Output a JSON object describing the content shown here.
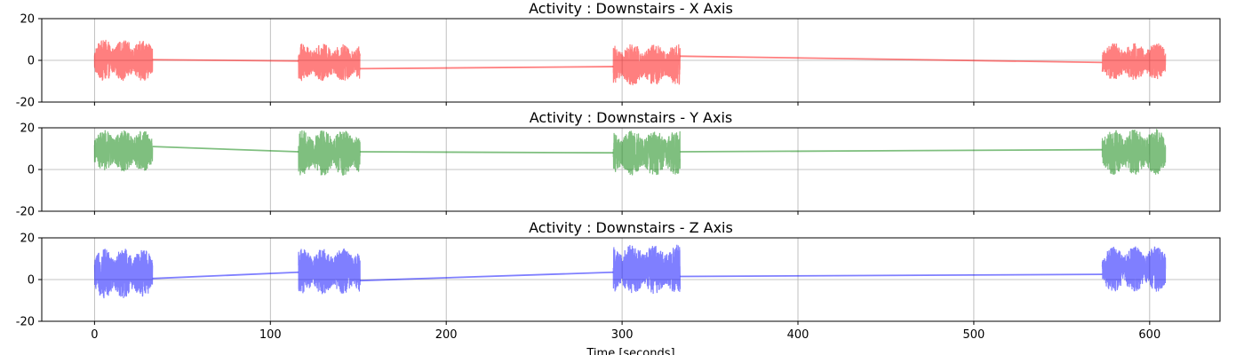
{
  "chart_data": [
    {
      "type": "line",
      "title": "Activity : Downstairs - X Axis",
      "color": "#ff0000",
      "alpha": 0.5,
      "ylim": [
        -20,
        20
      ],
      "yticks": [
        -20,
        0,
        20
      ],
      "xlim": [
        -30,
        640
      ],
      "xticks": [
        0,
        100,
        200,
        300,
        400,
        500,
        600
      ],
      "show_xtick_labels": false,
      "grid": true,
      "bursts": [
        {
          "x_start": 0,
          "x_end": 33,
          "mean": 0.0,
          "amplitude": 10
        },
        {
          "x_start": 116,
          "x_end": 151,
          "mean": -1.0,
          "amplitude": 9
        },
        {
          "x_start": 295,
          "x_end": 333,
          "mean": -2.0,
          "amplitude": 10
        },
        {
          "x_start": 573,
          "x_end": 609,
          "mean": -0.5,
          "amplitude": 9
        }
      ],
      "connectors": [
        {
          "x": [
            33,
            116
          ],
          "y": [
            0.3,
            -0.3
          ]
        },
        {
          "x": [
            151,
            295
          ],
          "y": [
            -4.0,
            -3.0
          ]
        },
        {
          "x": [
            333,
            573
          ],
          "y": [
            2.0,
            -1.0
          ]
        }
      ]
    },
    {
      "type": "line",
      "title": "Activity : Downstairs - Y Axis",
      "color": "#008000",
      "alpha": 0.5,
      "ylim": [
        -20,
        20
      ],
      "yticks": [
        -20,
        0,
        20
      ],
      "xlim": [
        -30,
        640
      ],
      "xticks": [
        0,
        100,
        200,
        300,
        400,
        500,
        600
      ],
      "show_xtick_labels": false,
      "grid": true,
      "bursts": [
        {
          "x_start": 0,
          "x_end": 33,
          "mean": 9.0,
          "amplitude": 10
        },
        {
          "x_start": 116,
          "x_end": 151,
          "mean": 8.0,
          "amplitude": 11
        },
        {
          "x_start": 295,
          "x_end": 333,
          "mean": 8.0,
          "amplitude": 11
        },
        {
          "x_start": 573,
          "x_end": 609,
          "mean": 8.5,
          "amplitude": 11
        }
      ],
      "connectors": [
        {
          "x": [
            33,
            116
          ],
          "y": [
            11.0,
            8.5
          ]
        },
        {
          "x": [
            151,
            295
          ],
          "y": [
            8.5,
            8.0
          ]
        },
        {
          "x": [
            333,
            573
          ],
          "y": [
            8.5,
            9.5
          ]
        }
      ]
    },
    {
      "type": "line",
      "title": "Activity : Downstairs - Z Axis",
      "color": "#0000ff",
      "alpha": 0.5,
      "ylim": [
        -20,
        20
      ],
      "yticks": [
        -20,
        0,
        20
      ],
      "xlim": [
        -30,
        640
      ],
      "xticks": [
        0,
        100,
        200,
        300,
        400,
        500,
        600
      ],
      "show_xtick_labels": true,
      "xlabel": "Time [seconds]",
      "grid": true,
      "bursts": [
        {
          "x_start": 0,
          "x_end": 33,
          "mean": 3.0,
          "amplitude": 12
        },
        {
          "x_start": 116,
          "x_end": 151,
          "mean": 4.0,
          "amplitude": 11
        },
        {
          "x_start": 295,
          "x_end": 333,
          "mean": 5.0,
          "amplitude": 12
        },
        {
          "x_start": 573,
          "x_end": 609,
          "mean": 5.0,
          "amplitude": 11
        }
      ],
      "connectors": [
        {
          "x": [
            33,
            116
          ],
          "y": [
            0.5,
            3.5
          ]
        },
        {
          "x": [
            151,
            295
          ],
          "y": [
            -0.5,
            3.5
          ]
        },
        {
          "x": [
            333,
            573
          ],
          "y": [
            1.5,
            2.5
          ]
        }
      ]
    }
  ]
}
